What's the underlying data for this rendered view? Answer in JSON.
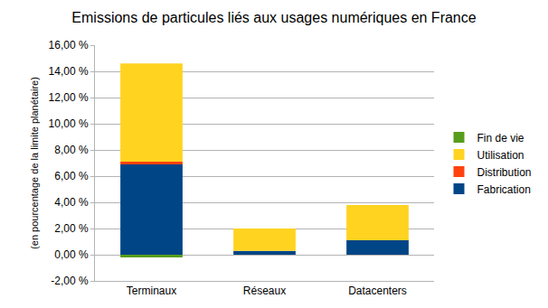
{
  "chart_data": {
    "type": "bar",
    "title": "Emissions de particules liés aux usages numériques en France",
    "y_label": "(en pourcentage de la limite planétaire)",
    "categories": [
      "Terminaux",
      "Réseaux",
      "Datacenters"
    ],
    "stacked": true,
    "grid": true,
    "legend": "right",
    "series": [
      {
        "name": "Fabrication",
        "color": "#004586",
        "values": [
          6.9,
          0.3,
          1.1
        ]
      },
      {
        "name": "Distribution",
        "color": "#ff420e",
        "values": [
          0.2,
          0,
          0
        ]
      },
      {
        "name": "Utilisation",
        "color": "#ffd320",
        "values": [
          7.5,
          1.7,
          2.7
        ]
      },
      {
        "name": "Fin de vie",
        "color": "#579d1c",
        "values": [
          -0.2,
          0,
          0
        ]
      }
    ],
    "ylim": [
      -2,
      16
    ],
    "yticks": [
      {
        "value": -2,
        "label": "-2,00 %"
      },
      {
        "value": 0,
        "label": "0,00 %"
      },
      {
        "value": 2,
        "label": "2,00 %"
      },
      {
        "value": 4,
        "label": "4,00 %"
      },
      {
        "value": 6,
        "label": "6,00 %"
      },
      {
        "value": 8,
        "label": "8,00 %"
      },
      {
        "value": 10,
        "label": "10,00 %"
      },
      {
        "value": 12,
        "label": "12,00 %"
      },
      {
        "value": 14,
        "label": "14,00 %"
      },
      {
        "value": 16,
        "label": "16,00 %"
      }
    ]
  }
}
